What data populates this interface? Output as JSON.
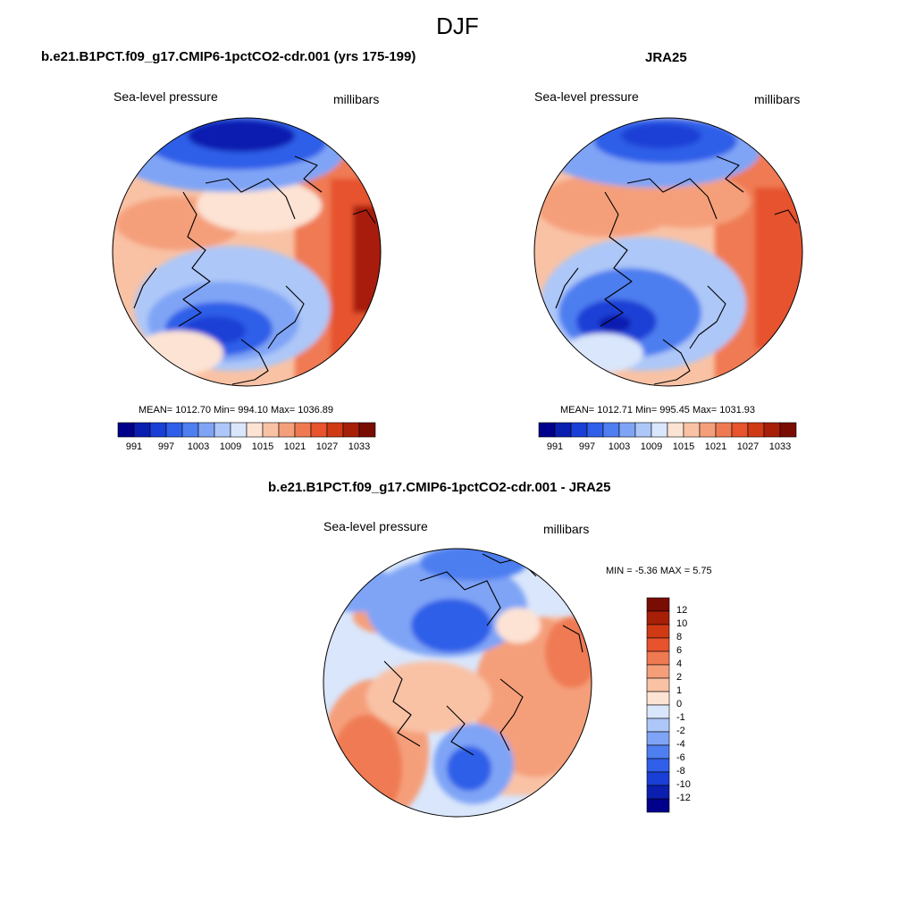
{
  "figure": {
    "title": "DJF"
  },
  "panels": [
    {
      "title": "b.e21.B1PCT.f09_g17.CMIP6-1pctCO2-cdr.001 (yrs 175-199)",
      "variable": "Sea-level pressure",
      "units": "millibars",
      "stats": "MEAN= 1012.70  Min= 994.10  Max= 1036.89",
      "mean": 1012.7,
      "min": 994.1,
      "max": 1036.89,
      "colorbar_labels": [
        "991",
        "997",
        "1003",
        "1009",
        "1015",
        "1021",
        "1027",
        "1033"
      ]
    },
    {
      "title": "JRA25",
      "variable": "Sea-level pressure",
      "units": "millibars",
      "stats": "MEAN= 1012.71  Min= 995.45  Max= 1031.93",
      "mean": 1012.71,
      "min": 995.45,
      "max": 1031.93,
      "colorbar_labels": [
        "991",
        "997",
        "1003",
        "1009",
        "1015",
        "1021",
        "1027",
        "1033"
      ]
    },
    {
      "title": "b.e21.B1PCT.f09_g17.CMIP6-1pctCO2-cdr.001 - JRA25",
      "variable": "Sea-level pressure",
      "units": "millibars",
      "stats": "MIN =  -5.36 MAX =   5.75",
      "min": -5.36,
      "max": 5.75,
      "colorbar_labels": [
        "12",
        "10",
        "8",
        "6",
        "4",
        "2",
        "1",
        "0",
        "-1",
        "-2",
        "-4",
        "-6",
        "-8",
        "-10",
        "-12"
      ]
    }
  ],
  "colors": {
    "abs_scale": [
      "#00008b",
      "#0a1fb0",
      "#1a3fd6",
      "#2f5fe8",
      "#4e7ef0",
      "#7fa4f6",
      "#adc7f8",
      "#d9e6fb",
      "#fde3d4",
      "#f9c2a5",
      "#f59f7a",
      "#ef7a52",
      "#e6532d",
      "#cf3a14",
      "#a81f08",
      "#7a0d03"
    ],
    "diff_scale": [
      "#7a0d03",
      "#a81f08",
      "#cf3a14",
      "#e6532d",
      "#ef7a52",
      "#f59f7a",
      "#f9c2a5",
      "#fde3d4",
      "#d9e6fb",
      "#adc7f8",
      "#7fa4f6",
      "#4e7ef0",
      "#2f5fe8",
      "#1a3fd6",
      "#0a1fb0",
      "#00008b"
    ]
  }
}
